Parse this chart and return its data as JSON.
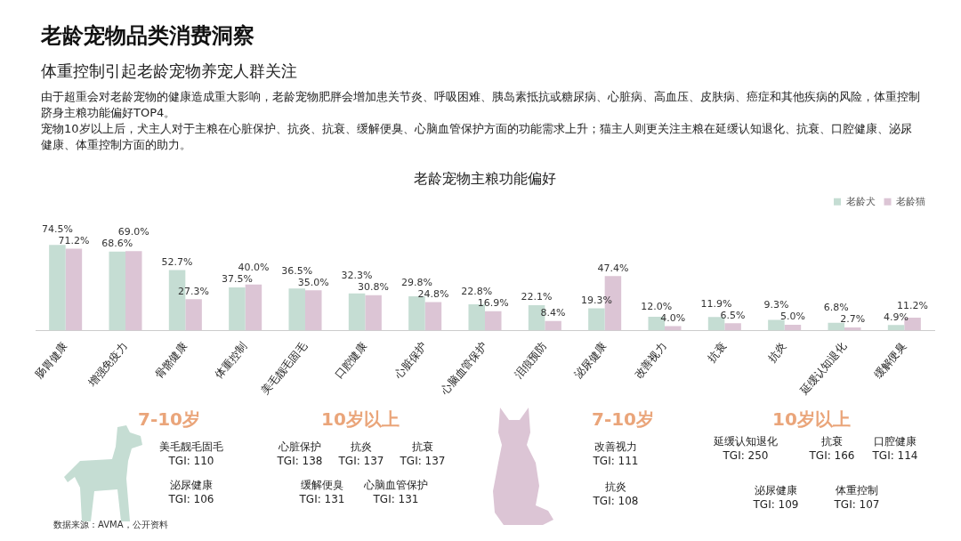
{
  "chart_data": [
    {
      "type": "other",
      "title": "老龄宠物品类消费洞察",
      "subtitle": "体重控制引起老龄宠物养宠人群关注",
      "annotations": [
        "由于超重会对老龄宠物的健康造成重大影响，老龄宠物肥胖会增加患关节炎、呼吸困难、胰岛素抵抗或糖尿病、心脏病、高血压、皮肤病、癌症和其他疾病的风险，体重控制跻身主粮功能偏好TOP4。",
        "宠物10岁以上后，犬主人对于主粮在心脏保护、抗炎、抗衰、缓解便臭、心脑血管保护方面的功能需求上升；猫主人则更关注主粮在延缓认知退化、抗衰、口腔健康、泌尿健康、体重控制方面的助力。"
      ]
    },
    {
      "type": "bar",
      "title": "老龄宠物主粮功能偏好",
      "legend": "top right",
      "categories": [
        "肠胃健康",
        "增强免疫力",
        "骨骼健康",
        "体重控制",
        "美毛靓毛固毛",
        "口腔健康",
        "心脏保护",
        "心脑血管保护",
        "泪痕预防",
        "泌尿健康",
        "改善视力",
        "抗衰",
        "抗炎",
        "延缓认知退化",
        "缓解便臭"
      ],
      "series": [
        {
          "name": "老龄犬",
          "color": "#c5ddd3",
          "values": [
            74.5,
            68.6,
            52.7,
            37.5,
            36.5,
            32.3,
            29.8,
            22.8,
            22.1,
            19.3,
            12.0,
            11.9,
            9.3,
            6.8,
            4.9
          ],
          "value_labels": [
            "74.5%",
            "68.6%",
            "52.7%",
            "37.5%",
            "36.5%",
            "32.3%",
            "29.8%",
            "22.8%",
            "22.1%",
            "19.3%",
            "12.0%",
            "11.9%",
            "9.3%",
            "6.8%",
            "4.9%"
          ]
        },
        {
          "name": "老龄猫",
          "color": "#dcc5d5",
          "values": [
            71.2,
            69.0,
            27.3,
            40.0,
            35.0,
            30.8,
            24.8,
            16.9,
            8.4,
            47.4,
            4.0,
            6.5,
            5.0,
            2.7,
            11.2
          ],
          "value_labels": [
            "71.2%",
            "69.0%",
            "27.3%",
            "40.0%",
            "35.0%",
            "30.8%",
            "24.8%",
            "16.9%",
            "8.4%",
            "47.4%",
            "4.0%",
            "6.5%",
            "5.0%",
            "2.7%",
            "11.2%"
          ]
        }
      ],
      "annotations": [
        "数据来源：AVMA，公开资料"
      ]
    },
    {
      "type": "other",
      "annotations": [
        "7-10岁",
        "美毛靓毛固毛",
        "TGI: 110",
        "泌尿健康",
        "TGI: 106",
        "10岁以上",
        "心脏保护",
        "TGI: 138",
        "抗炎",
        "TGI: 137",
        "抗衰",
        "TGI: 137",
        "缓解便臭",
        "TGI: 131",
        "心脑血管保护",
        "TGI: 131",
        "7-10岁",
        "改善视力",
        "TGI: 111",
        "抗炎",
        "TGI: 108",
        "10岁以上",
        "延缓认知退化",
        "TGI: 250",
        "抗衰",
        "TGI: 166",
        "口腔健康",
        "TGI: 114",
        "泌尿健康",
        "TGI: 109",
        "体重控制",
        "TGI: 107"
      ]
    }
  ]
}
